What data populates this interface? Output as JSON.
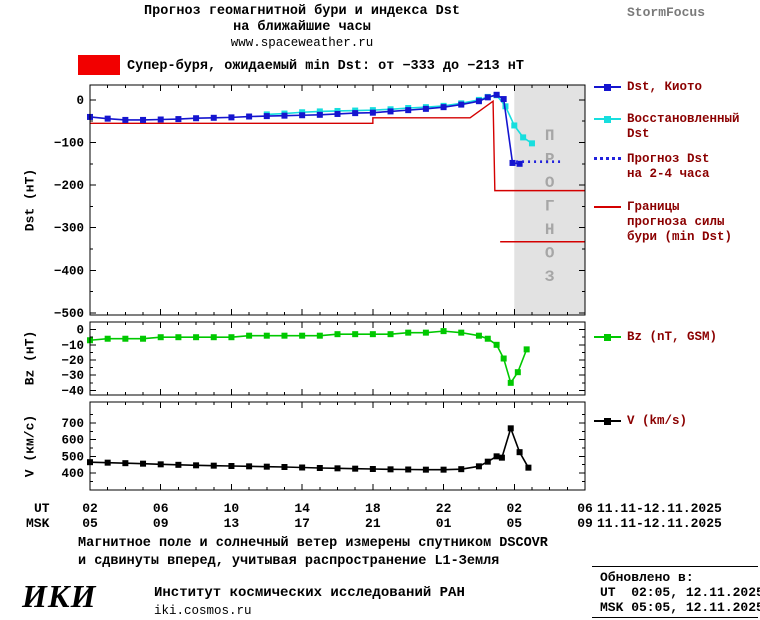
{
  "header": {
    "title_line1": "Прогноз геомагнитной бури и индекса Dst",
    "title_line2": "на ближайшие часы",
    "url": "www.spaceweather.ru",
    "brand": "StormFocus"
  },
  "alert": {
    "text": "Супер-буря, ожидаемый min Dst: от −333 до −213 нТ"
  },
  "colors": {
    "dst_kyoto": "#1515cf",
    "dst_restored": "#17dede",
    "dst_forecast": "#2222dd",
    "bounds": "#d40000",
    "bz": "#00c800",
    "v": "#000000",
    "alert": "#f20000",
    "band": "#e2e2e2",
    "watermark": "#a6a6a6",
    "brand_text": "#7a7a7a",
    "legend_text": "#8b0000"
  },
  "legend": {
    "dst_kyoto": "Dst, Киото",
    "restored_line1": "Восстановленный",
    "restored_line2": "Dst",
    "forecast_line1": "Прогноз Dst",
    "forecast_line2": "на 2-4 часа",
    "bounds_line1": "Границы",
    "bounds_line2": "прогноза силы",
    "bounds_line3": "бури (min Dst)",
    "bz": "Bz (nT, GSM)",
    "v": "V (km/s)"
  },
  "axes": {
    "dst_label": "Dst (нТ)",
    "bz_label": "Bz (нТ)",
    "v_label": "V (км/с)",
    "ut_label": "UT",
    "msk_label": "MSK",
    "ut_date": "11.11-12.11.2025",
    "msk_date": "11.11-12.11.2025"
  },
  "footer": {
    "note_line1": "Магнитное поле и солнечный ветер измерены спутником DSCOVR",
    "note_line2": "и сдвинуты вперед, учитывая распространение L1-Земля",
    "logo": "ИКИ",
    "institute": "Институт космических исследований РАН",
    "site": "iki.cosmos.ru",
    "updated_title": "Обновлено в:",
    "updated_ut": "UT  02:05, 12.11.2025",
    "updated_msk": "MSK 05:05, 12.11.2025"
  },
  "chart_data": {
    "type": "line",
    "x_domain": [
      2,
      30
    ],
    "x_major_ticks": [
      2,
      6,
      10,
      14,
      18,
      22,
      26,
      30
    ],
    "ut_tick_labels": [
      "02",
      "06",
      "10",
      "14",
      "18",
      "22",
      "02",
      "06"
    ],
    "msk_tick_labels": [
      "05",
      "09",
      "13",
      "17",
      "21",
      "01",
      "05",
      "09"
    ],
    "forecast_band_x": [
      26,
      30
    ],
    "forecast_label": "ПРОГНОЗ",
    "subplots": [
      {
        "id": "dst",
        "ylabel": "Dst (нТ)",
        "ylim": [
          35,
          -505
        ],
        "yticks": [
          0,
          -100,
          -200,
          -300,
          -400,
          -500
        ],
        "series": [
          {
            "name": "bounds_upper",
            "color_key": "bounds",
            "width": 1.4,
            "marker": false,
            "points": [
              [
                2,
                -55
              ],
              [
                18,
                -55
              ],
              [
                18,
                -42
              ],
              [
                23.5,
                -42
              ],
              [
                24.8,
                -3
              ],
              [
                24.9,
                -213
              ],
              [
                30,
                -213
              ]
            ]
          },
          {
            "name": "bounds_lower",
            "color_key": "bounds",
            "width": 1.4,
            "marker": false,
            "points": [
              [
                25.2,
                -333
              ],
              [
                30,
                -333
              ]
            ]
          },
          {
            "name": "dst_restored",
            "color_key": "dst_restored",
            "width": 1.6,
            "marker": true,
            "points": [
              [
                12,
                -34
              ],
              [
                13,
                -32
              ],
              [
                14,
                -29
              ],
              [
                15,
                -27
              ],
              [
                16,
                -26
              ],
              [
                17,
                -25
              ],
              [
                18,
                -24
              ],
              [
                19,
                -22
              ],
              [
                20,
                -19
              ],
              [
                21,
                -17
              ],
              [
                22,
                -14
              ],
              [
                23,
                -8
              ],
              [
                24,
                0
              ],
              [
                24.5,
                7
              ],
              [
                25,
                11
              ],
              [
                25.5,
                -15
              ],
              [
                26,
                -60
              ],
              [
                26.5,
                -88
              ],
              [
                27,
                -102
              ]
            ]
          },
          {
            "name": "dst_kyoto",
            "color_key": "dst_kyoto",
            "width": 1.6,
            "marker": true,
            "points": [
              [
                2,
                -40
              ],
              [
                3,
                -44
              ],
              [
                4,
                -47
              ],
              [
                5,
                -47
              ],
              [
                6,
                -46
              ],
              [
                7,
                -45
              ],
              [
                8,
                -43
              ],
              [
                9,
                -42
              ],
              [
                10,
                -41
              ],
              [
                11,
                -39
              ],
              [
                12,
                -38
              ],
              [
                13,
                -37
              ],
              [
                14,
                -36
              ],
              [
                15,
                -35
              ],
              [
                16,
                -33
              ],
              [
                17,
                -31
              ],
              [
                18,
                -30
              ],
              [
                19,
                -27
              ],
              [
                20,
                -24
              ],
              [
                21,
                -21
              ],
              [
                22,
                -17
              ],
              [
                23,
                -11
              ],
              [
                24,
                -3
              ],
              [
                24.5,
                6
              ],
              [
                25,
                12
              ],
              [
                25.4,
                2
              ],
              [
                25.9,
                -148
              ],
              [
                26.3,
                -150
              ]
            ]
          },
          {
            "name": "dst_forecast",
            "color_key": "dst_forecast",
            "width": 2.6,
            "dash": "2,4",
            "marker": false,
            "points": [
              [
                26.1,
                -145
              ],
              [
                28.6,
                -145
              ]
            ]
          }
        ]
      },
      {
        "id": "bz",
        "ylabel": "Bz (нТ)",
        "ylim": [
          5,
          -43
        ],
        "yticks": [
          0,
          -10,
          -20,
          -30,
          -40
        ],
        "series": [
          {
            "name": "bz",
            "color_key": "bz",
            "width": 1.6,
            "marker": true,
            "points": [
              [
                2,
                -7
              ],
              [
                3,
                -6
              ],
              [
                4,
                -6
              ],
              [
                5,
                -6
              ],
              [
                6,
                -5
              ],
              [
                7,
                -5
              ],
              [
                8,
                -5
              ],
              [
                9,
                -5
              ],
              [
                10,
                -5
              ],
              [
                11,
                -4
              ],
              [
                12,
                -4
              ],
              [
                13,
                -4
              ],
              [
                14,
                -4
              ],
              [
                15,
                -4
              ],
              [
                16,
                -3
              ],
              [
                17,
                -3
              ],
              [
                18,
                -3
              ],
              [
                19,
                -3
              ],
              [
                20,
                -2
              ],
              [
                21,
                -2
              ],
              [
                22,
                -1
              ],
              [
                23,
                -2
              ],
              [
                24,
                -4
              ],
              [
                24.5,
                -6
              ],
              [
                25,
                -10
              ],
              [
                25.4,
                -19
              ],
              [
                25.8,
                -35
              ],
              [
                26.2,
                -28
              ],
              [
                26.7,
                -13
              ]
            ]
          }
        ]
      },
      {
        "id": "v",
        "ylabel": "V (км/с)",
        "ylim": [
          826,
          298
        ],
        "yticks": [
          700,
          600,
          500,
          400
        ],
        "series": [
          {
            "name": "v",
            "color_key": "v",
            "width": 1.6,
            "marker": true,
            "points": [
              [
                2,
                465
              ],
              [
                3,
                462
              ],
              [
                4,
                459
              ],
              [
                5,
                456
              ],
              [
                6,
                452
              ],
              [
                7,
                449
              ],
              [
                8,
                446
              ],
              [
                9,
                444
              ],
              [
                10,
                442
              ],
              [
                11,
                440
              ],
              [
                12,
                438
              ],
              [
                13,
                436
              ],
              [
                14,
                433
              ],
              [
                15,
                430
              ],
              [
                16,
                428
              ],
              [
                17,
                426
              ],
              [
                18,
                424
              ],
              [
                19,
                422
              ],
              [
                20,
                421
              ],
              [
                21,
                420
              ],
              [
                22,
                420
              ],
              [
                23,
                423
              ],
              [
                24,
                440
              ],
              [
                24.5,
                468
              ],
              [
                25,
                500
              ],
              [
                25.3,
                492
              ],
              [
                25.8,
                668
              ],
              [
                26.3,
                525
              ],
              [
                26.8,
                432
              ]
            ]
          }
        ]
      }
    ]
  }
}
